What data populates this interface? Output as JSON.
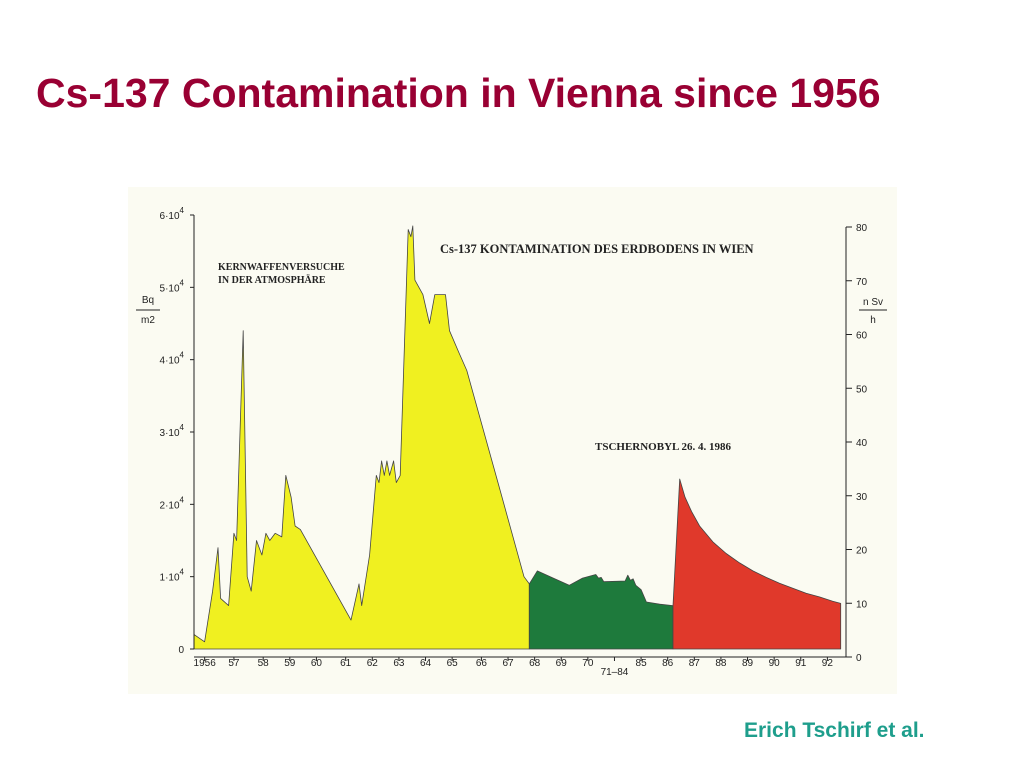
{
  "slide": {
    "title": "Cs-137 Contamination in Vienna since 1956",
    "credit": "Erich Tschirf et al."
  },
  "colors": {
    "title": "#990033",
    "credit": "#1e9e8c",
    "panel": "#fbfbf2",
    "weapons_tests": "#f0f020",
    "pre_chernobyl": "#1e7a3c",
    "chernobyl": "#e0392b"
  },
  "chart_data": {
    "type": "area",
    "title": "Cs-137 KONTAMINATION DES ERDBODENS IN WIEN",
    "annotations": {
      "weapons_tests_line1": "KERNWAFFENVERSUCHE",
      "weapons_tests_line2": "IN DER ATMOSPHÄRE",
      "chernobyl": "TSCHERNOBYL  26. 4. 1986"
    },
    "left_axis": {
      "unit_num": "Bq",
      "unit_den": "m2",
      "ylim": [
        0,
        60000
      ],
      "ticks": [
        {
          "base": "0",
          "exp": ""
        },
        {
          "base": "1·10",
          "exp": "4"
        },
        {
          "base": "2·10",
          "exp": "4"
        },
        {
          "base": "3·10",
          "exp": "4"
        },
        {
          "base": "4·10",
          "exp": "4"
        },
        {
          "base": "5·10",
          "exp": "4"
        },
        {
          "base": "6·10",
          "exp": "4"
        }
      ]
    },
    "right_axis": {
      "unit_num": "n Sv",
      "unit_den": "h",
      "ylim": [
        0,
        80
      ],
      "ticks": [
        "0",
        "10",
        "20",
        "30",
        "40",
        "50",
        "60",
        "70",
        "80"
      ]
    },
    "x_axis": {
      "xlim": [
        0,
        24.5
      ],
      "ticks": [
        {
          "label": "1956",
          "pos": 0.4
        },
        {
          "label": "57",
          "pos": 1.5
        },
        {
          "label": "58",
          "pos": 2.6
        },
        {
          "label": "59",
          "pos": 3.6
        },
        {
          "label": "60",
          "pos": 4.6
        },
        {
          "label": "61",
          "pos": 5.7
        },
        {
          "label": "62",
          "pos": 6.7
        },
        {
          "label": "63",
          "pos": 7.7
        },
        {
          "label": "64",
          "pos": 8.7
        },
        {
          "label": "65",
          "pos": 9.7
        },
        {
          "label": "66",
          "pos": 10.8
        },
        {
          "label": "67",
          "pos": 11.8
        },
        {
          "label": "68",
          "pos": 12.8
        },
        {
          "label": "69",
          "pos": 13.8
        },
        {
          "label": "70",
          "pos": 14.8
        },
        {
          "label": "71–84",
          "pos": 15.8
        },
        {
          "label": "85",
          "pos": 16.8
        },
        {
          "label": "86",
          "pos": 17.8
        },
        {
          "label": "87",
          "pos": 18.8
        },
        {
          "label": "88",
          "pos": 19.8
        },
        {
          "label": "89",
          "pos": 20.8
        },
        {
          "label": "90",
          "pos": 21.8
        },
        {
          "label": "91",
          "pos": 22.8
        },
        {
          "label": "92",
          "pos": 23.8
        }
      ]
    },
    "series": [
      {
        "key": "weapons_tests",
        "x": [
          0,
          0.4,
          0.7,
          0.9,
          1.0,
          1.3,
          1.5,
          1.6,
          1.85,
          2.0,
          2.15,
          2.35,
          2.55,
          2.7,
          2.85,
          3.05,
          3.3,
          3.45,
          3.65,
          3.8,
          4.0,
          5.9,
          6.2,
          6.3,
          6.6,
          6.85,
          6.95,
          7.05,
          7.15,
          7.25,
          7.35,
          7.5,
          7.6,
          7.75,
          8.05,
          8.15,
          8.22,
          8.3,
          8.6,
          8.85,
          9.05,
          9.45,
          9.6,
          9.95,
          10.25,
          11.5,
          12.4,
          12.6
        ],
        "y": [
          2000,
          1000,
          8000,
          14000,
          7000,
          6000,
          16000,
          15000,
          44000,
          10000,
          8000,
          15000,
          13000,
          16000,
          15000,
          16000,
          15500,
          24000,
          21000,
          17000,
          16500,
          4000,
          9000,
          6000,
          13000,
          24000,
          23000,
          26000,
          24000,
          26000,
          24000,
          26000,
          23000,
          24000,
          58000,
          57000,
          58500,
          51000,
          49000,
          45000,
          49000,
          49000,
          44000,
          41000,
          38500,
          22000,
          10000,
          9000
        ]
      },
      {
        "key": "pre_chernobyl",
        "x": [
          12.6,
          12.9,
          13.5,
          14.1,
          14.6,
          15.1,
          15.2,
          15.3,
          15.4,
          16.2,
          16.3,
          16.4,
          16.5,
          16.6,
          16.8,
          17.0,
          17.5,
          18.0
        ],
        "y": [
          9000,
          10800,
          9800,
          8800,
          9800,
          10300,
          9800,
          9900,
          9300,
          9400,
          10200,
          9500,
          9700,
          8800,
          8200,
          6500,
          6200,
          6000
        ]
      },
      {
        "key": "chernobyl",
        "x": [
          18.0,
          18.25,
          18.45,
          18.7,
          19.0,
          19.5,
          20.0,
          20.5,
          21.0,
          21.5,
          22.0,
          22.5,
          23.0,
          23.5,
          24.0,
          24.3
        ],
        "y": [
          6000,
          23500,
          21000,
          19000,
          17000,
          14800,
          13200,
          11900,
          10800,
          9900,
          9100,
          8400,
          7700,
          7200,
          6600,
          6300
        ]
      }
    ]
  }
}
